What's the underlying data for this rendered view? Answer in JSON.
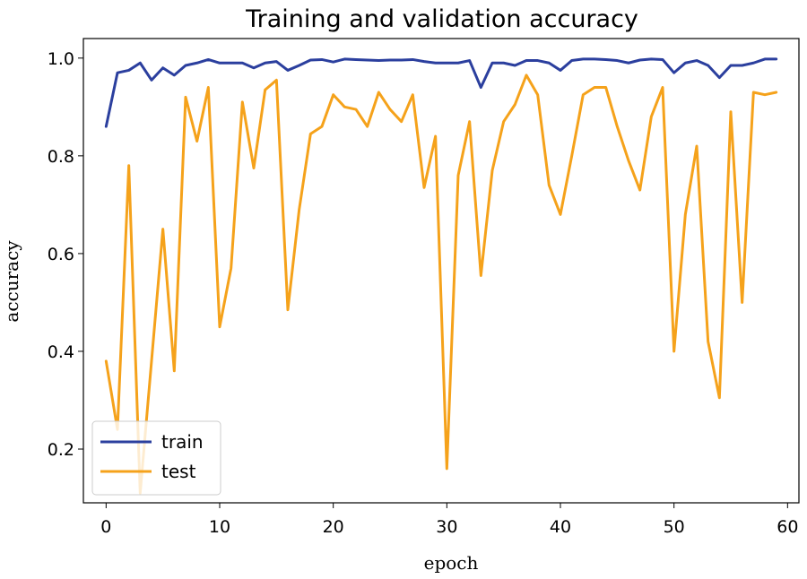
{
  "chart_data": {
    "type": "line",
    "title": "Training and validation accuracy",
    "xlabel": "epoch",
    "ylabel": "accuracy",
    "xlim": [
      -2,
      61
    ],
    "ylim": [
      0.09,
      1.04
    ],
    "xticks": [
      0,
      10,
      20,
      30,
      40,
      50,
      60
    ],
    "yticks": [
      0.2,
      0.4,
      0.6,
      0.8,
      1.0
    ],
    "xtick_labels": [
      "0",
      "10",
      "20",
      "30",
      "40",
      "50",
      "60"
    ],
    "ytick_labels": [
      "0.2",
      "0.4",
      "0.6",
      "0.8",
      "1.0"
    ],
    "grid": false,
    "legend_position": "lower-left",
    "x": [
      0,
      1,
      2,
      3,
      4,
      5,
      6,
      7,
      8,
      9,
      10,
      11,
      12,
      13,
      14,
      15,
      16,
      17,
      18,
      19,
      20,
      21,
      22,
      23,
      24,
      25,
      26,
      27,
      28,
      29,
      30,
      31,
      32,
      33,
      34,
      35,
      36,
      37,
      38,
      39,
      40,
      41,
      42,
      43,
      44,
      45,
      46,
      47,
      48,
      49,
      50,
      51,
      52,
      53,
      54,
      55,
      56,
      57,
      58,
      59
    ],
    "series": [
      {
        "name": "train",
        "color": "#2b3f9e",
        "values": [
          0.86,
          0.97,
          0.975,
          0.99,
          0.955,
          0.98,
          0.965,
          0.985,
          0.99,
          0.997,
          0.99,
          0.99,
          0.99,
          0.98,
          0.99,
          0.993,
          0.975,
          0.985,
          0.996,
          0.997,
          0.992,
          0.998,
          0.997,
          0.996,
          0.995,
          0.996,
          0.996,
          0.997,
          0.993,
          0.99,
          0.99,
          0.99,
          0.995,
          0.94,
          0.99,
          0.99,
          0.985,
          0.995,
          0.995,
          0.99,
          0.975,
          0.995,
          0.998,
          0.998,
          0.997,
          0.995,
          0.99,
          0.996,
          0.998,
          0.997,
          0.97,
          0.99,
          0.995,
          0.985,
          0.96,
          0.985,
          0.985,
          0.99,
          0.998,
          0.998
        ]
      },
      {
        "name": "test",
        "color": "#f5a21b",
        "values": [
          0.38,
          0.24,
          0.78,
          0.11,
          0.38,
          0.65,
          0.36,
          0.92,
          0.83,
          0.94,
          0.45,
          0.57,
          0.91,
          0.775,
          0.935,
          0.955,
          0.485,
          0.69,
          0.845,
          0.86,
          0.925,
          0.9,
          0.895,
          0.86,
          0.93,
          0.895,
          0.87,
          0.925,
          0.735,
          0.84,
          0.16,
          0.76,
          0.87,
          0.555,
          0.77,
          0.87,
          0.905,
          0.965,
          0.925,
          0.74,
          0.68,
          0.8,
          0.925,
          0.94,
          0.94,
          0.86,
          0.79,
          0.73,
          0.88,
          0.94,
          0.4,
          0.68,
          0.82,
          0.42,
          0.305,
          0.89,
          0.5,
          0.93,
          0.925,
          0.93
        ]
      }
    ]
  }
}
